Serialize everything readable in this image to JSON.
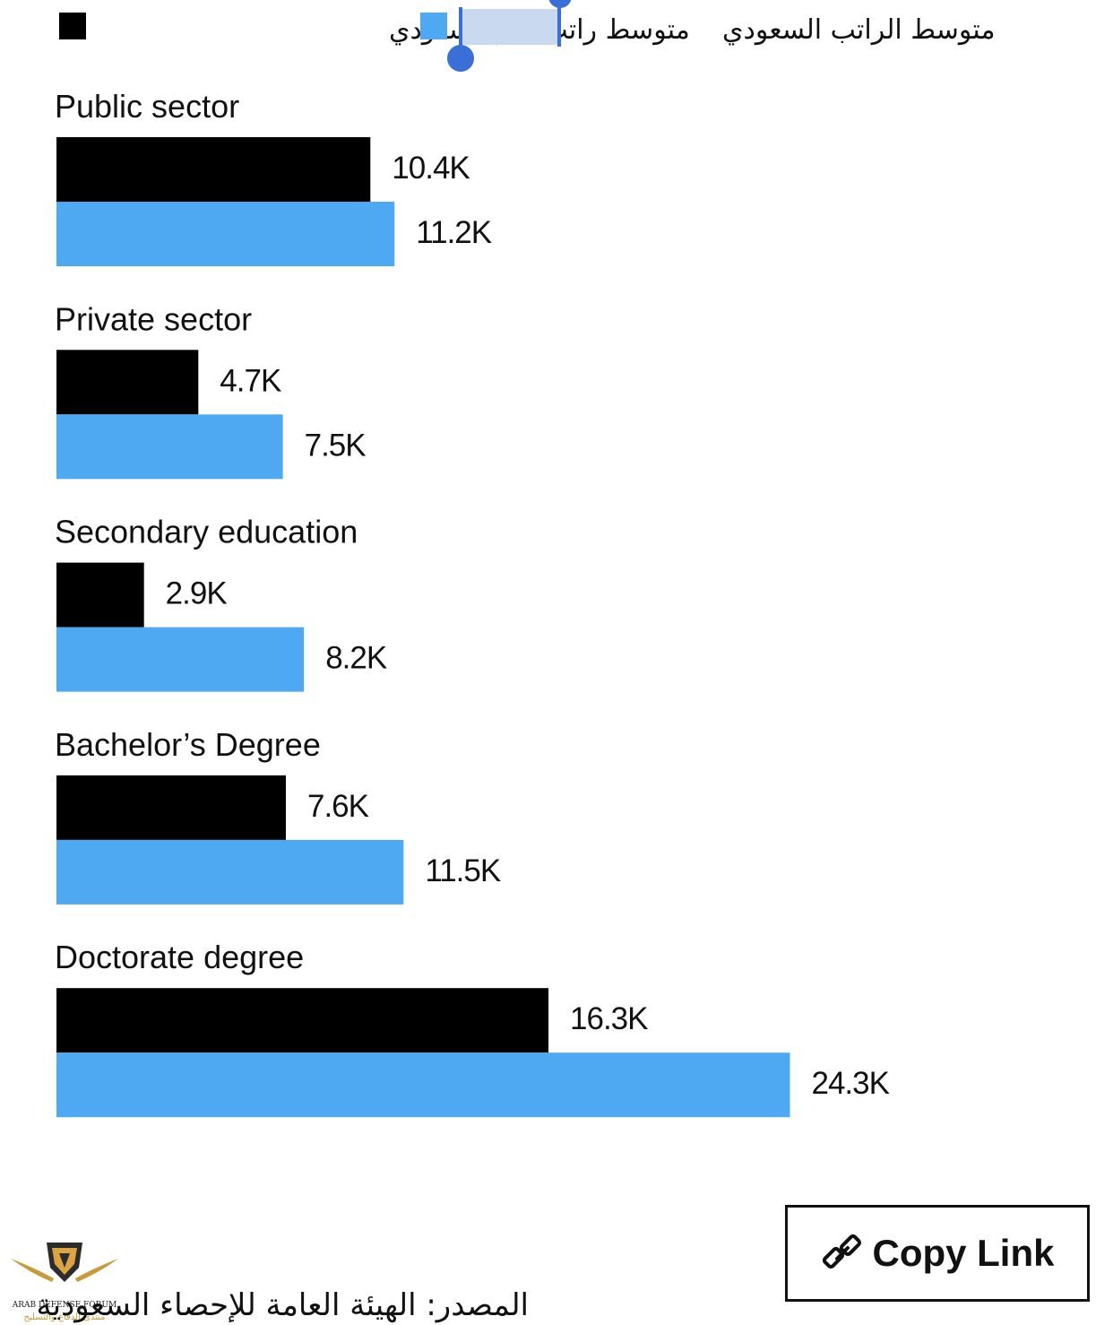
{
  "colors": {
    "saudi": "#4ea9f2",
    "non_saudi": "#000000",
    "selection_handle": "#3a6fd8",
    "selection_fill": "#c9d9ef"
  },
  "legend": [
    {
      "label": "متوسط راتب غير السعودي",
      "series": "non_saudi",
      "color": "#000000"
    },
    {
      "label": "متوسط الراتب السعودي",
      "series": "saudi",
      "color": "#4ea9f2",
      "selected_text": "السعودي"
    }
  ],
  "chart_data": {
    "type": "bar",
    "orientation": "horizontal",
    "categories": [
      "Public sector",
      "Private sector",
      "Secondary education",
      "Bachelor’s Degree",
      "Doctorate degree"
    ],
    "series": [
      {
        "name": "متوسط راتب غير السعودي",
        "values": [
          10.4,
          4.7,
          2.9,
          7.6,
          16.3
        ],
        "labels": [
          "10.4K",
          "4.7K",
          "2.9K",
          "7.6K",
          "16.3K"
        ]
      },
      {
        "name": "متوسط الراتب السعودي",
        "values": [
          11.2,
          7.5,
          8.2,
          11.5,
          24.3
        ],
        "labels": [
          "11.2K",
          "7.5K",
          "8.2K",
          "11.5K",
          "24.3K"
        ]
      }
    ],
    "xlim": [
      0,
      24.3
    ],
    "grid": false,
    "legend_position": "top"
  },
  "copy_link": {
    "label": "Copy Link",
    "icon": "link-icon"
  },
  "source": "المصدر: الهيئة العامة للإحصاء السعودية",
  "logo": {
    "icon": "arab-defense-forum-logo",
    "text": "ARAB DEFENSE FORUM",
    "subtext": "منتدى الدفاع والتسليح"
  }
}
